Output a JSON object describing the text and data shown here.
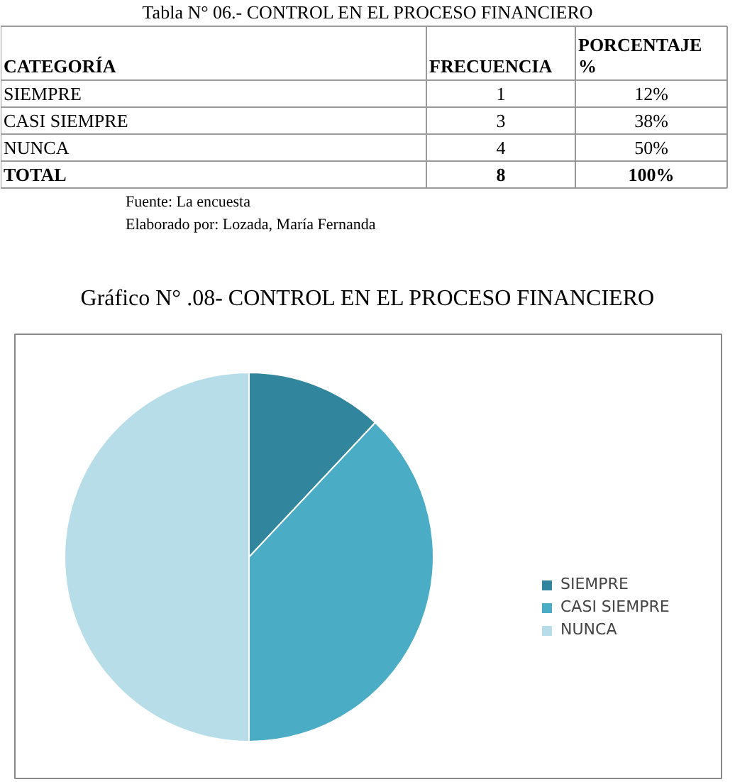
{
  "chart_data": [
    {
      "type": "other",
      "title": "Tabla N° 06.- CONTROL EN EL PROCESO FINANCIERO",
      "categories": [
        "CATEGORÍA",
        "FRECUENCIA",
        "PORCENTAJE %"
      ],
      "annotations": [
        "SIEMPRE",
        "1",
        "12%",
        "CASI SIEMPRE",
        "3",
        "38%",
        "NUNCA",
        "4",
        "50%",
        "TOTAL",
        "8",
        "100%",
        "Fuente: La encuesta",
        "Elaborado por: Lozada, María Fernanda"
      ]
    },
    {
      "type": "pie",
      "title": "Gráfico N° .08- CONTROL EN EL PROCESO FINANCIERO",
      "categories": [
        "SIEMPRE",
        "CASI SIEMPRE",
        "NUNCA"
      ],
      "values": [
        12,
        38,
        50
      ],
      "colors": [
        "#31859c",
        "#4bacc6",
        "#b7dee8"
      ],
      "legend": "right"
    }
  ]
}
